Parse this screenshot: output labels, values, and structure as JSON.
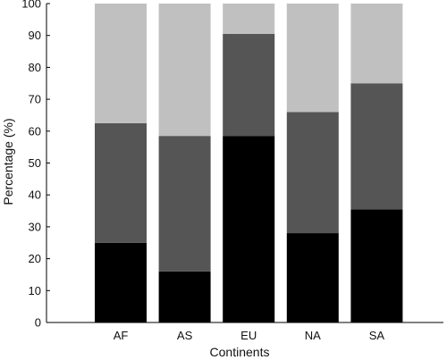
{
  "chart_data": {
    "type": "bar",
    "stacked": true,
    "categories": [
      "AF",
      "AS",
      "EU",
      "NA",
      "SA"
    ],
    "series": [
      {
        "values": [
          25,
          16,
          58.5,
          28,
          35.5
        ],
        "color": "#000000"
      },
      {
        "values": [
          37.5,
          42.5,
          32,
          38,
          39.5
        ],
        "color": "#555555"
      },
      {
        "values": [
          37.5,
          41.5,
          9.5,
          34,
          25
        ],
        "color": "#c0c0c0"
      }
    ],
    "xlabel": "Continents",
    "ylabel": "Percentage (%)",
    "ylim": [
      0,
      100
    ],
    "yticks": [
      0,
      10,
      20,
      30,
      40,
      50,
      60,
      70,
      80,
      90,
      100
    ],
    "grid": false,
    "legend": "none"
  }
}
